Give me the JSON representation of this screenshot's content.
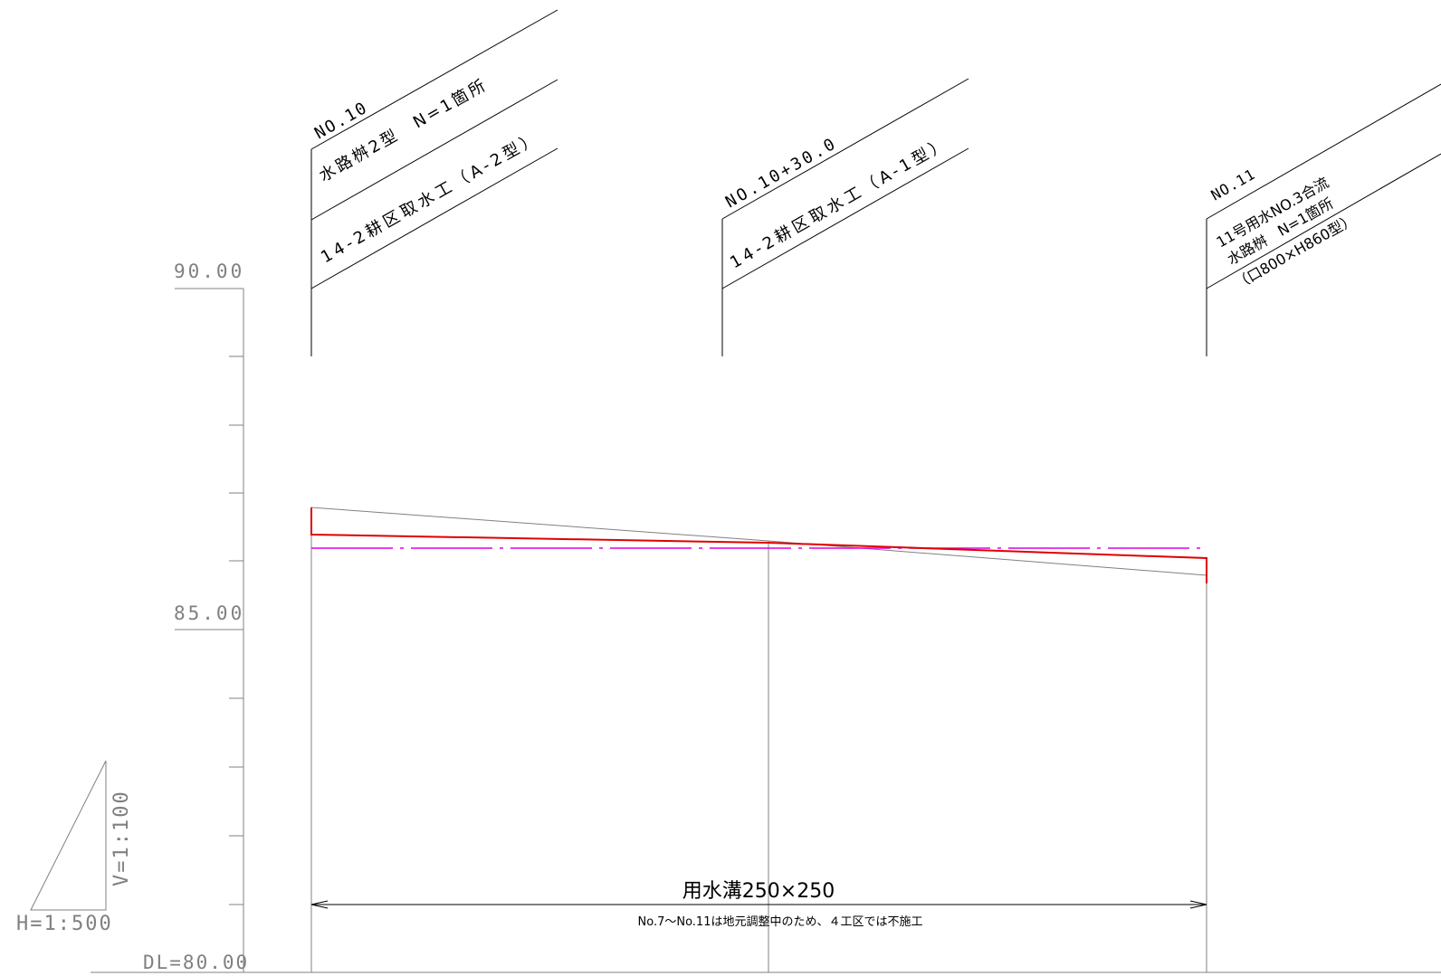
{
  "vertical_axis": {
    "label_top": "90.00",
    "label_mid": "85.00",
    "label_datum": "DL=80.00"
  },
  "scale": {
    "horizontal": "H=1:500",
    "vertical": "V=1:100"
  },
  "stations": [
    {
      "station": "NO.10",
      "line1": "水路桝2型　N=1箇所",
      "line2": "14-2耕区取水工（A-2型）"
    },
    {
      "station": "NO.10+30.0",
      "line1": "14-2耕区取水工（A-1型）"
    },
    {
      "station": "NO.11",
      "line1": "11号用水NO.3合流",
      "line2": "水路桝　N=1箇所",
      "line3": "（口800×H860型）"
    }
  ],
  "dimension": {
    "title": "用水溝250×250",
    "note": "No.7～No.11は地元調整中のため、４工区では不施工"
  },
  "colors": {
    "ground_line": "#808080",
    "design_line": "#e00000",
    "centerline": "#e000e0",
    "axis": "#808080",
    "text": "#000000"
  }
}
